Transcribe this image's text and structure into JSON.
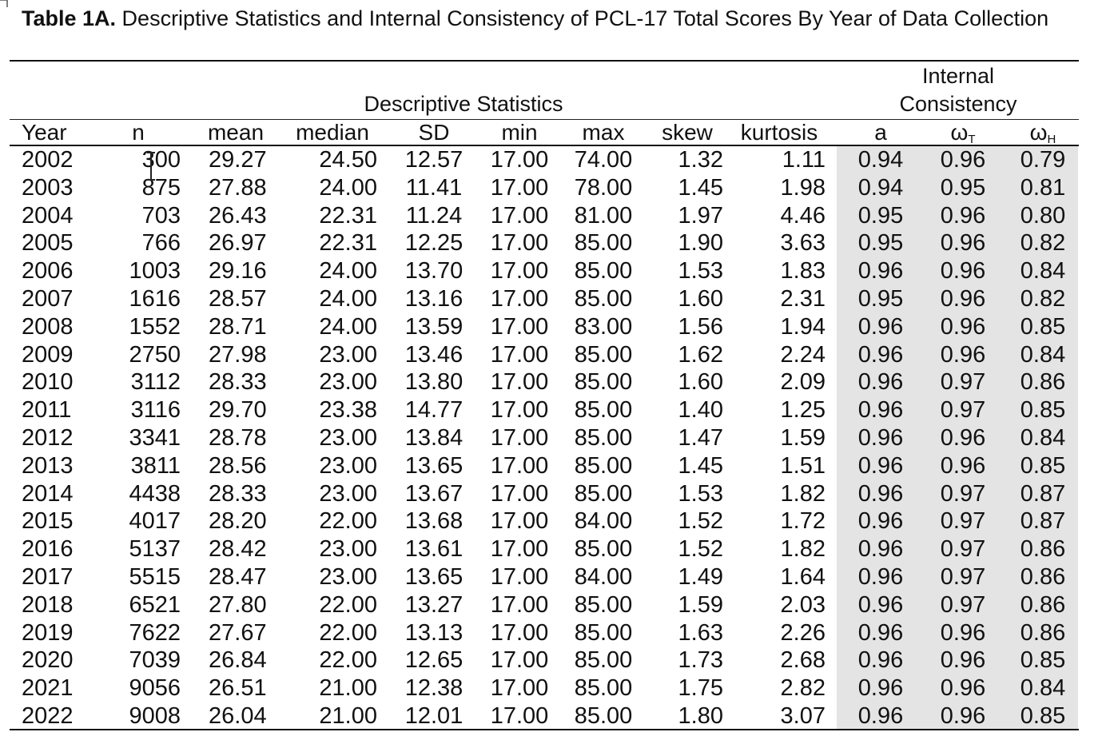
{
  "table": {
    "title_bold": "Table 1A.",
    "title_rest": " Descriptive Statistics and Internal Consistency of PCL-17 Total Scores By Year of Data Collection",
    "group_headers": {
      "descriptive": "Descriptive Statistics",
      "internal_line1": "Internal",
      "internal_line2": "Consistency"
    },
    "columns": [
      "Year",
      "n",
      "mean",
      "median",
      "SD",
      "min",
      "max",
      "skew",
      "kurtosis",
      "a",
      "ωT",
      "ωH"
    ],
    "omega_t": {
      "base": "ω",
      "sub": "T"
    },
    "omega_h": {
      "base": "ω",
      "sub": "H"
    },
    "rows": [
      [
        "2002",
        "300",
        "29.27",
        "24.50",
        "12.57",
        "17.00",
        "74.00",
        "1.32",
        "1.11",
        "0.94",
        "0.96",
        "0.79"
      ],
      [
        "2003",
        "875",
        "27.88",
        "24.00",
        "11.41",
        "17.00",
        "78.00",
        "1.45",
        "1.98",
        "0.94",
        "0.95",
        "0.81"
      ],
      [
        "2004",
        "703",
        "26.43",
        "22.31",
        "11.24",
        "17.00",
        "81.00",
        "1.97",
        "4.46",
        "0.95",
        "0.96",
        "0.80"
      ],
      [
        "2005",
        "766",
        "26.97",
        "22.31",
        "12.25",
        "17.00",
        "85.00",
        "1.90",
        "3.63",
        "0.95",
        "0.96",
        "0.82"
      ],
      [
        "2006",
        "1003",
        "29.16",
        "24.00",
        "13.70",
        "17.00",
        "85.00",
        "1.53",
        "1.83",
        "0.96",
        "0.96",
        "0.84"
      ],
      [
        "2007",
        "1616",
        "28.57",
        "24.00",
        "13.16",
        "17.00",
        "85.00",
        "1.60",
        "2.31",
        "0.95",
        "0.96",
        "0.82"
      ],
      [
        "2008",
        "1552",
        "28.71",
        "24.00",
        "13.59",
        "17.00",
        "83.00",
        "1.56",
        "1.94",
        "0.96",
        "0.96",
        "0.85"
      ],
      [
        "2009",
        "2750",
        "27.98",
        "23.00",
        "13.46",
        "17.00",
        "85.00",
        "1.62",
        "2.24",
        "0.96",
        "0.96",
        "0.84"
      ],
      [
        "2010",
        "3112",
        "28.33",
        "23.00",
        "13.80",
        "17.00",
        "85.00",
        "1.60",
        "2.09",
        "0.96",
        "0.97",
        "0.86"
      ],
      [
        "2011",
        "3116",
        "29.70",
        "23.38",
        "14.77",
        "17.00",
        "85.00",
        "1.40",
        "1.25",
        "0.96",
        "0.97",
        "0.85"
      ],
      [
        "2012",
        "3341",
        "28.78",
        "23.00",
        "13.84",
        "17.00",
        "85.00",
        "1.47",
        "1.59",
        "0.96",
        "0.96",
        "0.84"
      ],
      [
        "2013",
        "3811",
        "28.56",
        "23.00",
        "13.65",
        "17.00",
        "85.00",
        "1.45",
        "1.51",
        "0.96",
        "0.96",
        "0.85"
      ],
      [
        "2014",
        "4438",
        "28.33",
        "23.00",
        "13.67",
        "17.00",
        "85.00",
        "1.53",
        "1.82",
        "0.96",
        "0.97",
        "0.87"
      ],
      [
        "2015",
        "4017",
        "28.20",
        "22.00",
        "13.68",
        "17.00",
        "84.00",
        "1.52",
        "1.72",
        "0.96",
        "0.97",
        "0.87"
      ],
      [
        "2016",
        "5137",
        "28.42",
        "23.00",
        "13.61",
        "17.00",
        "85.00",
        "1.52",
        "1.82",
        "0.96",
        "0.97",
        "0.86"
      ],
      [
        "2017",
        "5515",
        "28.47",
        "23.00",
        "13.65",
        "17.00",
        "84.00",
        "1.49",
        "1.64",
        "0.96",
        "0.97",
        "0.86"
      ],
      [
        "2018",
        "6521",
        "27.80",
        "22.00",
        "13.27",
        "17.00",
        "85.00",
        "1.59",
        "2.03",
        "0.96",
        "0.97",
        "0.86"
      ],
      [
        "2019",
        "7622",
        "27.67",
        "22.00",
        "13.13",
        "17.00",
        "85.00",
        "1.63",
        "2.26",
        "0.96",
        "0.96",
        "0.86"
      ],
      [
        "2020",
        "7039",
        "26.84",
        "22.00",
        "12.65",
        "17.00",
        "85.00",
        "1.73",
        "2.68",
        "0.96",
        "0.96",
        "0.85"
      ],
      [
        "2021",
        "9056",
        "26.51",
        "21.00",
        "12.38",
        "17.00",
        "85.00",
        "1.75",
        "2.82",
        "0.96",
        "0.96",
        "0.84"
      ],
      [
        "2022",
        "9008",
        "26.04",
        "21.00",
        "12.01",
        "17.00",
        "85.00",
        "1.80",
        "3.07",
        "0.96",
        "0.96",
        "0.85"
      ]
    ],
    "shade_color": "#e4e4e4"
  }
}
